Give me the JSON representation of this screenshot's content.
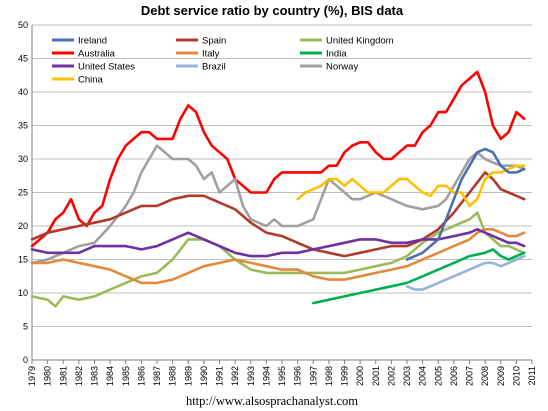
{
  "chart_data": {
    "type": "line",
    "title": "Debt service ratio by country (%), BIS data",
    "footer": "http://www.alsosprachanalyst.com",
    "xlabel": "",
    "ylabel": "",
    "xlim": [
      1979,
      2011
    ],
    "ylim": [
      0,
      50
    ],
    "grid": "horizontal",
    "legend_position": "top-left",
    "x_ticks": [
      "1979",
      "1980",
      "1981",
      "1982",
      "1983",
      "1984",
      "1985",
      "1986",
      "1987",
      "1988",
      "1989",
      "1990",
      "1991",
      "1992",
      "1993",
      "1994",
      "1995",
      "1996",
      "1997",
      "1998",
      "1999",
      "2000",
      "2001",
      "2002",
      "2003",
      "2004",
      "2005",
      "2006",
      "2007",
      "2008",
      "2009",
      "2010",
      "2011"
    ],
    "y_ticks": [
      "0",
      "5",
      "10",
      "15",
      "20",
      "25",
      "30",
      "35",
      "40",
      "45",
      "50"
    ],
    "series": [
      {
        "name": "Ireland",
        "color": "#4a72b0",
        "x": [
          2003,
          2004,
          2005,
          2005.5,
          2006,
          2006.5,
          2007,
          2007.5,
          2008,
          2008.5,
          2009,
          2009.5,
          2010,
          2010.5
        ],
        "y": [
          15,
          16,
          18,
          21,
          24,
          27,
          29,
          31,
          31.5,
          31,
          29,
          28,
          28,
          28.5
        ]
      },
      {
        "name": "Spain",
        "color": "#b03a2e",
        "x": [
          1979,
          1980,
          1981,
          1982,
          1983,
          1984,
          1985,
          1986,
          1987,
          1988,
          1989,
          1990,
          1991,
          1992,
          1993,
          1994,
          1995,
          1996,
          1997,
          1998,
          1999,
          2000,
          2001,
          2002,
          2003,
          2004,
          2005,
          2006,
          2007,
          2007.5,
          2008,
          2008.5,
          2009,
          2009.5,
          2010,
          2010.5
        ],
        "y": [
          18,
          19,
          19.5,
          20,
          20.5,
          21,
          22,
          23,
          23,
          24,
          24.5,
          24.5,
          23.5,
          22.5,
          20.5,
          19,
          18.5,
          17.5,
          16.5,
          16,
          15.5,
          16,
          16.5,
          17,
          17,
          18,
          19.5,
          22,
          25,
          26.5,
          28,
          27,
          25.5,
          25,
          24.5,
          24
        ]
      },
      {
        "name": "United Kingdom",
        "color": "#9bbb59",
        "x": [
          1979,
          1980,
          1980.5,
          1981,
          1982,
          1983,
          1984,
          1985,
          1986,
          1987,
          1988,
          1989,
          1990,
          1991,
          1992,
          1993,
          1994,
          1995,
          1996,
          1997,
          1998,
          1999,
          2000,
          2001,
          2002,
          2003,
          2004,
          2005,
          2006,
          2007,
          2007.5,
          2008,
          2008.5,
          2009,
          2009.5,
          2010,
          2010.5
        ],
        "y": [
          9.5,
          9,
          8,
          9.5,
          9,
          9.5,
          10.5,
          11.5,
          12.5,
          13,
          15,
          18,
          18,
          17,
          15,
          13.5,
          13,
          13,
          13,
          13,
          13,
          13,
          13.5,
          14,
          14.5,
          15.5,
          17.5,
          19,
          20,
          21,
          22,
          19,
          18,
          17,
          17,
          16.5,
          16
        ]
      },
      {
        "name": "Australia",
        "color": "#ff0000",
        "x": [
          1979,
          1979.5,
          1980,
          1980.5,
          1981,
          1981.5,
          1982,
          1982.5,
          1983,
          1983.5,
          1984,
          1984.5,
          1985,
          1985.5,
          1986,
          1986.5,
          1987,
          1987.5,
          1988,
          1988.5,
          1989,
          1989.5,
          1990,
          1990.5,
          1991,
          1991.5,
          1992,
          1992.5,
          1993,
          1993.5,
          1994,
          1994.5,
          1995,
          1995.5,
          1996,
          1996.5,
          1997,
          1997.5,
          1998,
          1998.5,
          1999,
          1999.5,
          2000,
          2000.5,
          2001,
          2001.5,
          2002,
          2002.5,
          2003,
          2003.5,
          2004,
          2004.5,
          2005,
          2005.5,
          2006,
          2006.5,
          2007,
          2007.5,
          2008,
          2008.5,
          2009,
          2009.5,
          2010,
          2010.5
        ],
        "y": [
          17,
          18,
          19,
          21,
          22,
          24,
          21,
          20,
          22,
          23,
          27,
          30,
          32,
          33,
          34,
          34,
          33,
          33,
          33,
          36,
          38,
          37,
          34,
          32,
          31,
          30,
          27,
          26,
          25,
          25,
          25,
          27,
          28,
          28,
          28,
          28,
          28,
          28,
          29,
          29,
          31,
          32,
          32.5,
          32.5,
          31,
          30,
          30,
          31,
          32,
          32,
          34,
          35,
          37,
          37,
          39,
          41,
          42,
          43,
          40,
          35,
          33,
          34,
          37,
          36
        ]
      },
      {
        "name": "Italy",
        "color": "#e3893b",
        "x": [
          1979,
          1980,
          1981,
          1982,
          1983,
          1984,
          1985,
          1986,
          1987,
          1988,
          1989,
          1990,
          1991,
          1992,
          1993,
          1994,
          1995,
          1996,
          1997,
          1998,
          1999,
          2000,
          2001,
          2002,
          2003,
          2004,
          2005,
          2006,
          2007,
          2007.5,
          2008,
          2008.5,
          2009,
          2009.5,
          2010,
          2010.5
        ],
        "y": [
          14.5,
          14.5,
          15,
          14.5,
          14,
          13.5,
          12.5,
          11.5,
          11.5,
          12,
          13,
          14,
          14.5,
          15,
          14.5,
          14,
          13.5,
          13.5,
          12.5,
          12,
          12,
          12.5,
          13,
          13.5,
          14,
          15,
          16,
          17,
          18,
          19,
          19.5,
          19.5,
          19,
          18.5,
          18.5,
          19
        ]
      },
      {
        "name": "India",
        "color": "#00b050",
        "x": [
          1997,
          1998,
          1999,
          2000,
          2001,
          2002,
          2003,
          2004,
          2005,
          2006,
          2007,
          2008,
          2008.5,
          2009,
          2009.5,
          2010,
          2010.5
        ],
        "y": [
          8.5,
          9,
          9.5,
          10,
          10.5,
          11,
          11.5,
          12.5,
          13.5,
          14.5,
          15.5,
          16,
          16.5,
          15.5,
          15,
          15.5,
          16
        ]
      },
      {
        "name": "United States",
        "color": "#7030a0",
        "x": [
          1979,
          1980,
          1981,
          1982,
          1983,
          1984,
          1985,
          1986,
          1987,
          1988,
          1989,
          1990,
          1991,
          1992,
          1993,
          1994,
          1995,
          1996,
          1997,
          1998,
          1999,
          2000,
          2001,
          2002,
          2003,
          2004,
          2005,
          2006,
          2007,
          2007.5,
          2008,
          2008.5,
          2009,
          2009.5,
          2010,
          2010.5
        ],
        "y": [
          16.5,
          16,
          16,
          16,
          17,
          17,
          17,
          16.5,
          17,
          18,
          19,
          18,
          17,
          16,
          15.5,
          15.5,
          16,
          16,
          16.5,
          17,
          17.5,
          18,
          18,
          17.5,
          17.5,
          18,
          18,
          18.5,
          19,
          19.5,
          19,
          18.5,
          18,
          17.5,
          17.5,
          17
        ]
      },
      {
        "name": "Brazil",
        "color": "#95b3d7",
        "x": [
          2003,
          2003.5,
          2004,
          2004.5,
          2005,
          2005.5,
          2006,
          2006.5,
          2007,
          2007.5,
          2008,
          2008.5,
          2009,
          2009.5,
          2010,
          2010.5
        ],
        "y": [
          11,
          10.5,
          10.5,
          11,
          11.5,
          12,
          12.5,
          13,
          13.5,
          14,
          14.5,
          14.5,
          14,
          14.5,
          15,
          15.5
        ]
      },
      {
        "name": "Norway",
        "color": "#a0a0a0",
        "x": [
          1979,
          1980,
          1981,
          1982,
          1983,
          1984,
          1985,
          1985.5,
          1986,
          1986.5,
          1987,
          1987.5,
          1988,
          1988.5,
          1989,
          1989.5,
          1990,
          1990.5,
          1991,
          1991.5,
          1992,
          1992.5,
          1993,
          1993.5,
          1994,
          1994.5,
          1995,
          1995.5,
          1996,
          1996.5,
          1997,
          1997.5,
          1998,
          1998.5,
          1999,
          1999.5,
          2000,
          2000.5,
          2001,
          2002,
          2003,
          2004,
          2005,
          2005.5,
          2006,
          2006.5,
          2007,
          2007.5,
          2008,
          2008.5,
          2009,
          2009.5,
          2010,
          2010.5
        ],
        "y": [
          14.5,
          15,
          16,
          17,
          17.5,
          20,
          23,
          25,
          28,
          30,
          32,
          31,
          30,
          30,
          30,
          29,
          27,
          28,
          25,
          26,
          27,
          23,
          21,
          20.5,
          20,
          21,
          20,
          20,
          20,
          20.5,
          21,
          24,
          27,
          26,
          25,
          24,
          24,
          24.5,
          25,
          24,
          23,
          22.5,
          23,
          24,
          26,
          28,
          30,
          31,
          30,
          29.5,
          29,
          29,
          29,
          28.5
        ]
      },
      {
        "name": "China",
        "color": "#ffc000",
        "x": [
          1996,
          1996.5,
          1997,
          1997.5,
          1998,
          1998.5,
          1999,
          1999.5,
          2000,
          2000.5,
          2001,
          2001.5,
          2002,
          2002.5,
          2003,
          2003.5,
          2004,
          2004.5,
          2005,
          2005.5,
          2006,
          2006.5,
          2007,
          2007.5,
          2008,
          2008.5,
          2009,
          2009.5,
          2010,
          2010.5
        ],
        "y": [
          24,
          25,
          25.5,
          26,
          27,
          27,
          26,
          27,
          26,
          25,
          25,
          25,
          26,
          27,
          27,
          26,
          25,
          24.5,
          26,
          26,
          25,
          25,
          23,
          24,
          27,
          28,
          28,
          28.5,
          29,
          29
        ]
      }
    ]
  }
}
